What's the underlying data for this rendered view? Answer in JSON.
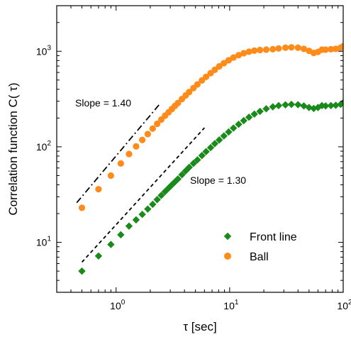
{
  "chart_data": {
    "type": "scatter",
    "xscale": "log",
    "yscale": "log",
    "xlim": [
      0.3,
      100
    ],
    "ylim": [
      3,
      3000
    ],
    "xlabel": "τ [sec]",
    "ylabel": "Correlation function C( τ)",
    "xticks": [
      {
        "value": 1,
        "base": "10",
        "exp": "0"
      },
      {
        "value": 10,
        "base": "10",
        "exp": "1"
      },
      {
        "value": 100,
        "base": "10",
        "exp": "2"
      }
    ],
    "yticks": [
      {
        "value": 10,
        "base": "10",
        "exp": "1"
      },
      {
        "value": 100,
        "base": "10",
        "exp": "2"
      },
      {
        "value": 1000,
        "base": "10",
        "exp": "3"
      }
    ],
    "legend_position": "bottom-right",
    "series": [
      {
        "name": "Front line",
        "color": "#1a8a1a",
        "marker": "diamond",
        "points": [
          [
            0.5,
            5.0
          ],
          [
            0.7,
            7.2
          ],
          [
            0.9,
            9.5
          ],
          [
            1.1,
            12.0
          ],
          [
            1.3,
            14.8
          ],
          [
            1.5,
            17.2
          ],
          [
            1.7,
            19.6
          ],
          [
            1.9,
            22.3
          ],
          [
            2.1,
            25.0
          ],
          [
            2.3,
            28.0
          ],
          [
            2.5,
            31
          ],
          [
            2.7,
            34
          ],
          [
            2.9,
            37
          ],
          [
            3.1,
            40
          ],
          [
            3.3,
            43
          ],
          [
            3.5,
            46
          ],
          [
            3.8,
            51
          ],
          [
            4.1,
            56
          ],
          [
            4.4,
            61
          ],
          [
            4.8,
            67
          ],
          [
            5.2,
            73
          ],
          [
            5.7,
            81
          ],
          [
            6.2,
            89
          ],
          [
            6.8,
            98
          ],
          [
            7.4,
            108
          ],
          [
            8.1,
            118
          ],
          [
            8.9,
            130
          ],
          [
            9.8,
            143
          ],
          [
            10.8,
            157
          ],
          [
            12.0,
            172
          ],
          [
            13.3,
            188
          ],
          [
            14.8,
            204
          ],
          [
            16.5,
            220
          ],
          [
            18.5,
            235
          ],
          [
            21,
            250
          ],
          [
            24,
            262
          ],
          [
            27,
            270
          ],
          [
            31,
            275
          ],
          [
            35,
            278
          ],
          [
            40,
            276
          ],
          [
            45,
            268
          ],
          [
            50,
            258
          ],
          [
            55,
            252
          ],
          [
            60,
            258
          ],
          [
            65,
            270
          ],
          [
            70,
            268
          ],
          [
            78,
            270
          ],
          [
            86,
            272
          ],
          [
            95,
            278
          ],
          [
            100,
            290
          ]
        ]
      },
      {
        "name": "Ball",
        "color": "#ff8c1a",
        "marker": "circle",
        "points": [
          [
            0.5,
            23
          ],
          [
            0.7,
            36
          ],
          [
            0.9,
            50
          ],
          [
            1.1,
            67
          ],
          [
            1.3,
            84
          ],
          [
            1.5,
            101
          ],
          [
            1.7,
            118
          ],
          [
            1.9,
            136
          ],
          [
            2.1,
            155
          ],
          [
            2.3,
            174
          ],
          [
            2.5,
            193
          ],
          [
            2.7,
            212
          ],
          [
            2.9,
            230
          ],
          [
            3.1,
            249
          ],
          [
            3.3,
            268
          ],
          [
            3.5,
            287
          ],
          [
            3.8,
            316
          ],
          [
            4.1,
            345
          ],
          [
            4.4,
            374
          ],
          [
            4.8,
            412
          ],
          [
            5.2,
            450
          ],
          [
            5.7,
            495
          ],
          [
            6.2,
            540
          ],
          [
            6.8,
            590
          ],
          [
            7.4,
            640
          ],
          [
            8.1,
            695
          ],
          [
            8.9,
            750
          ],
          [
            9.8,
            805
          ],
          [
            10.8,
            860
          ],
          [
            12.0,
            910
          ],
          [
            13.3,
            955
          ],
          [
            14.8,
            990
          ],
          [
            16.5,
            1015
          ],
          [
            18.5,
            1030
          ],
          [
            21,
            1040
          ],
          [
            24,
            1050
          ],
          [
            27,
            1070
          ],
          [
            31,
            1090
          ],
          [
            35,
            1100
          ],
          [
            40,
            1090
          ],
          [
            45,
            1060
          ],
          [
            50,
            1010
          ],
          [
            55,
            960
          ],
          [
            60,
            985
          ],
          [
            65,
            1040
          ],
          [
            70,
            1040
          ],
          [
            78,
            1050
          ],
          [
            86,
            1060
          ],
          [
            95,
            1090
          ],
          [
            100,
            1130
          ]
        ]
      }
    ],
    "fit_lines": [
      {
        "label": "Slope = 1.40",
        "style": "dashdot",
        "x": [
          0.45,
          2.45
        ],
        "y": [
          26,
          285
        ]
      },
      {
        "label": "Slope = 1.30",
        "style": "dashed",
        "x": [
          0.5,
          6.0
        ],
        "y": [
          6.2,
          158
        ]
      }
    ]
  }
}
